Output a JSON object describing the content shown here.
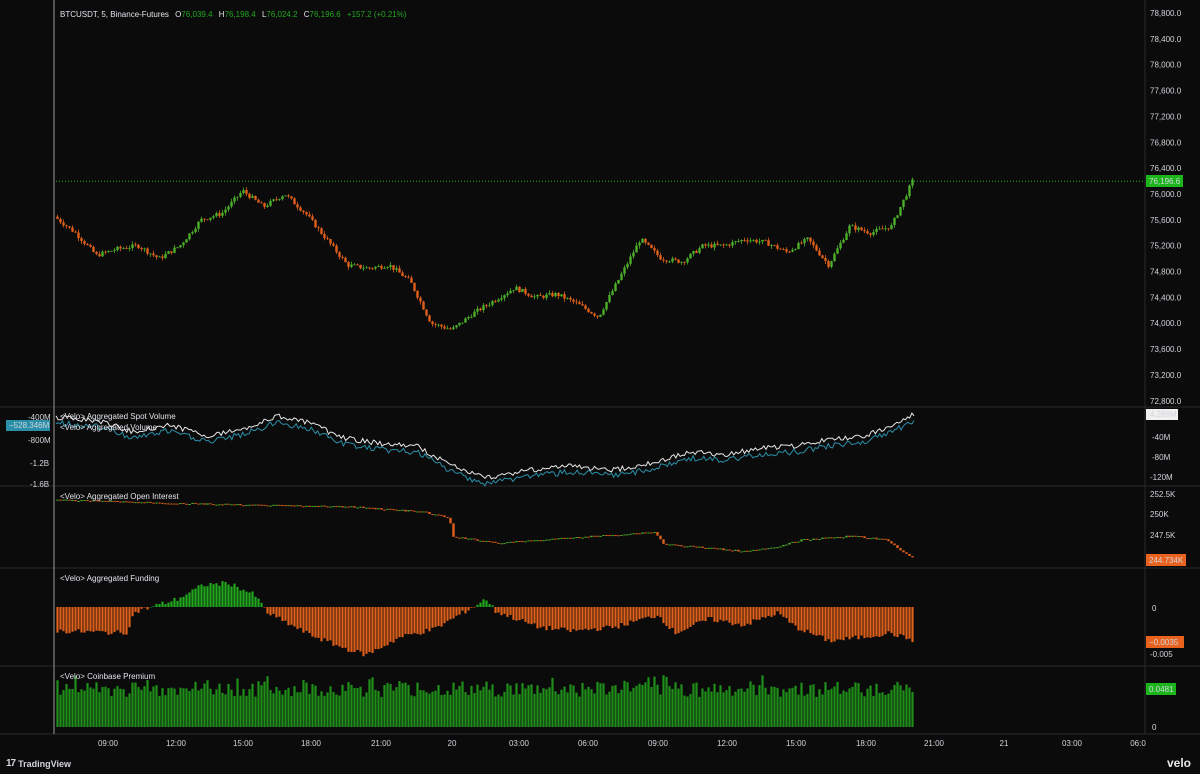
{
  "header": {
    "symbol": "BTCUSDT, 5, Binance-Futures",
    "o_label": "O",
    "o_value": "76,039.4",
    "h_label": "H",
    "h_value": "76,198.4",
    "l_label": "L",
    "l_value": "76,024.2",
    "c_label": "C",
    "c_value": "76,196.6",
    "change": "+157.2 (+0.21%)"
  },
  "colors": {
    "background": "#0b0b0b",
    "up": "#22a81f",
    "down": "#e0601b",
    "candle_up": "#4caf2a",
    "last_price": "#1cb61c",
    "vol_spot": "#2a8fa8",
    "vol_agg": "#e8e8e8",
    "oi_badge": "#e9631e",
    "funding_badge": "#e9631e",
    "premium_badge": "#1cb61c"
  },
  "price_axis": {
    "labels": [
      "78,800.0",
      "78,400.0",
      "78,000.0",
      "77,600.0",
      "77,200.0",
      "76,800.0",
      "76,400.0",
      "76,000.0",
      "75,600.0",
      "75,200.0",
      "74,800.0",
      "74,400.0",
      "74,000.0",
      "73,600.0",
      "73,200.0",
      "72,800.0"
    ],
    "last_price": "76,196.6"
  },
  "time_axis": {
    "labels": [
      "09:00",
      "12:00",
      "15:00",
      "18:00",
      "21:00",
      "20",
      "03:00",
      "06:00",
      "09:00",
      "12:00",
      "15:00",
      "18:00",
      "21:00",
      "21",
      "03:00",
      "06:0"
    ]
  },
  "chart_data": {
    "type": "candlestick",
    "symbol": "BTCUSDT",
    "interval": "5",
    "exchange": "Binance-Futures",
    "ylim": [
      72800,
      78800
    ],
    "last": 76196.6,
    "approx_close_path": [
      {
        "t": "07:00",
        "v": 75650
      },
      {
        "t": "08:00",
        "v": 75400
      },
      {
        "t": "09:00",
        "v": 75050
      },
      {
        "t": "10:00",
        "v": 75150
      },
      {
        "t": "11:00",
        "v": 75200
      },
      {
        "t": "12:00",
        "v": 75000
      },
      {
        "t": "13:00",
        "v": 75200
      },
      {
        "t": "14:00",
        "v": 75600
      },
      {
        "t": "15:00",
        "v": 75700
      },
      {
        "t": "15:30",
        "v": 76050
      },
      {
        "t": "16:30",
        "v": 75800
      },
      {
        "t": "17:00",
        "v": 76000
      },
      {
        "t": "18:00",
        "v": 75700
      },
      {
        "t": "19:00",
        "v": 75300
      },
      {
        "t": "20:00",
        "v": 74900
      },
      {
        "t": "21:00",
        "v": 74850
      },
      {
        "t": "22:00",
        "v": 74900
      },
      {
        "t": "23:00",
        "v": 74650
      },
      {
        "t": "00:00",
        "v": 74000
      },
      {
        "t": "01:00",
        "v": 73900
      },
      {
        "t": "02:00",
        "v": 74150
      },
      {
        "t": "03:00",
        "v": 74350
      },
      {
        "t": "04:00",
        "v": 74550
      },
      {
        "t": "05:00",
        "v": 74400
      },
      {
        "t": "06:00",
        "v": 74450
      },
      {
        "t": "07:00",
        "v": 74300
      },
      {
        "t": "08:00",
        "v": 74100
      },
      {
        "t": "09:00",
        "v": 74700
      },
      {
        "t": "09:30",
        "v": 75300
      },
      {
        "t": "10:00",
        "v": 75000
      },
      {
        "t": "11:00",
        "v": 74950
      },
      {
        "t": "12:00",
        "v": 75200
      },
      {
        "t": "13:00",
        "v": 75200
      },
      {
        "t": "14:00",
        "v": 75300
      },
      {
        "t": "15:00",
        "v": 75250
      },
      {
        "t": "16:00",
        "v": 75100
      },
      {
        "t": "17:00",
        "v": 75300
      },
      {
        "t": "17:30",
        "v": 74900
      },
      {
        "t": "18:00",
        "v": 75500
      },
      {
        "t": "19:00",
        "v": 75400
      },
      {
        "t": "19:30",
        "v": 75500
      },
      {
        "t": "20:00",
        "v": 76196.6
      }
    ]
  },
  "panes": {
    "volume": {
      "title_spot": "<Velo> Aggregated Spot Volume",
      "title_agg": "<Velo> Aggregated Volume",
      "left_axis": [
        "-400M",
        "-800M",
        "-1.2B",
        "-1.6B"
      ],
      "left_badge": "−528.346M",
      "right_axis": [
        "-40M",
        "-80M",
        "-120M"
      ],
      "right_badge": "4.269M"
    },
    "open_interest": {
      "title": "<Velo> Aggregated Open Interest",
      "axis": [
        "252.5K",
        "250K",
        "247.5K"
      ],
      "badge": "244.734K"
    },
    "funding": {
      "title": "<Velo> Aggregated Funding",
      "axis": [
        "0",
        "-0.005"
      ],
      "badge": "−0.0035"
    },
    "premium": {
      "title": "<Velo> Coinbase Premium",
      "axis": [
        "0"
      ],
      "badge": "0.0481"
    }
  },
  "footer": {
    "tv_mark": "17",
    "tv_text": "TradingView",
    "brand": "velo"
  }
}
